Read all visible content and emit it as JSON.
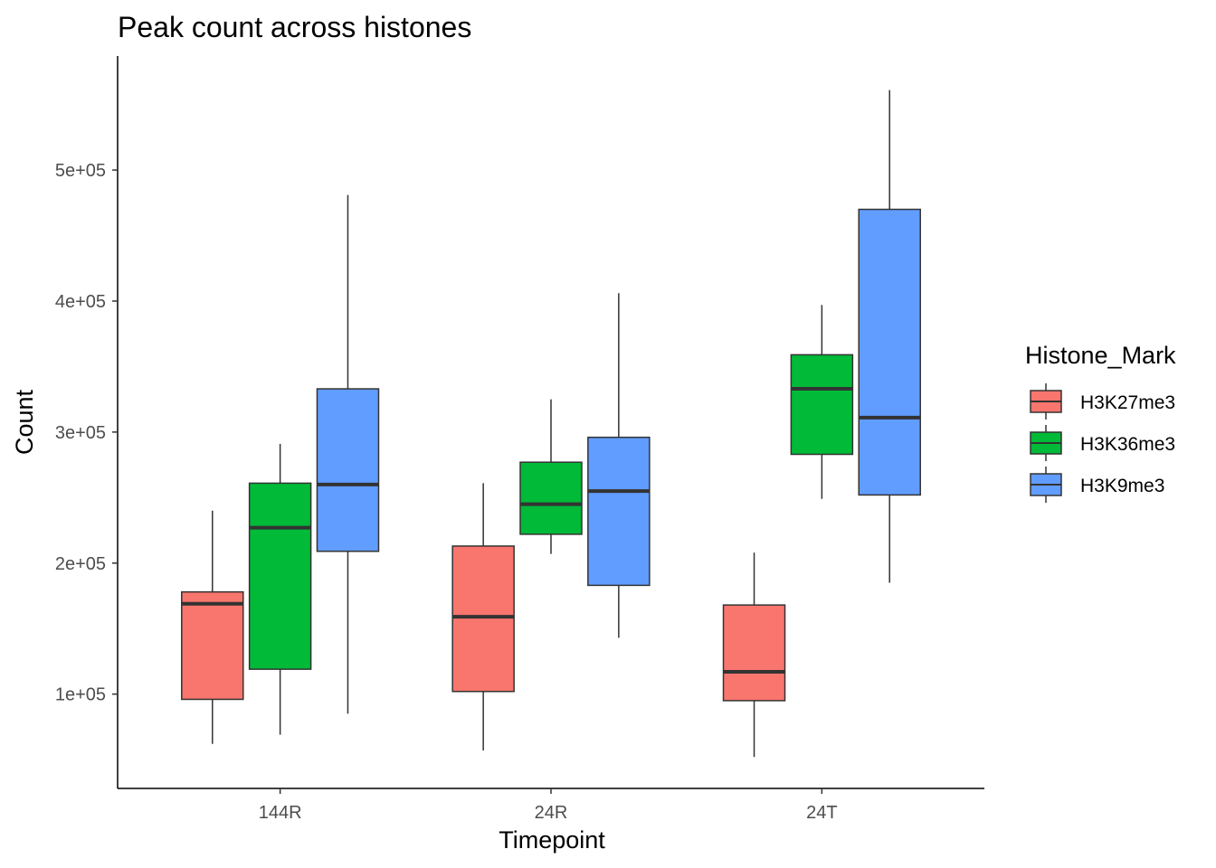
{
  "chart_data": {
    "type": "boxplot",
    "title": "Peak count across histones",
    "xlabel": "Timepoint",
    "ylabel": "Count",
    "categories": [
      "144R",
      "24R",
      "24T"
    ],
    "yticks": [
      100000,
      200000,
      300000,
      400000,
      500000
    ],
    "ytick_labels": [
      "1e+05",
      "2e+05",
      "3e+05",
      "4e+05",
      "5e+05"
    ],
    "ylim": [
      28000,
      587000
    ],
    "grid": false,
    "legend": {
      "title": "Histone_Mark",
      "position": "right"
    },
    "series": [
      {
        "name": "H3K27me3",
        "color": "#F8766D",
        "boxes": [
          {
            "min": 62000,
            "q1": 96000,
            "median": 169000,
            "q3": 178000,
            "max": 240000
          },
          {
            "min": 57000,
            "q1": 102000,
            "median": 159000,
            "q3": 213000,
            "max": 261000
          },
          {
            "min": 52000,
            "q1": 95000,
            "median": 117000,
            "q3": 168000,
            "max": 208000
          }
        ]
      },
      {
        "name": "H3K36me3",
        "color": "#00BA38",
        "boxes": [
          {
            "min": 69000,
            "q1": 119000,
            "median": 227000,
            "q3": 261000,
            "max": 291000
          },
          {
            "min": 207000,
            "q1": 222000,
            "median": 245000,
            "q3": 277000,
            "max": 325000
          },
          {
            "min": 249000,
            "q1": 283000,
            "median": 333000,
            "q3": 359000,
            "max": 397000
          }
        ]
      },
      {
        "name": "H3K9me3",
        "color": "#619CFF",
        "boxes": [
          {
            "min": 85000,
            "q1": 209000,
            "median": 260000,
            "q3": 333000,
            "max": 481000
          },
          {
            "min": 143000,
            "q1": 183000,
            "median": 255000,
            "q3": 296000,
            "max": 406000
          },
          {
            "min": 185000,
            "q1": 252000,
            "median": 311000,
            "q3": 470000,
            "max": 561000
          }
        ]
      }
    ]
  }
}
